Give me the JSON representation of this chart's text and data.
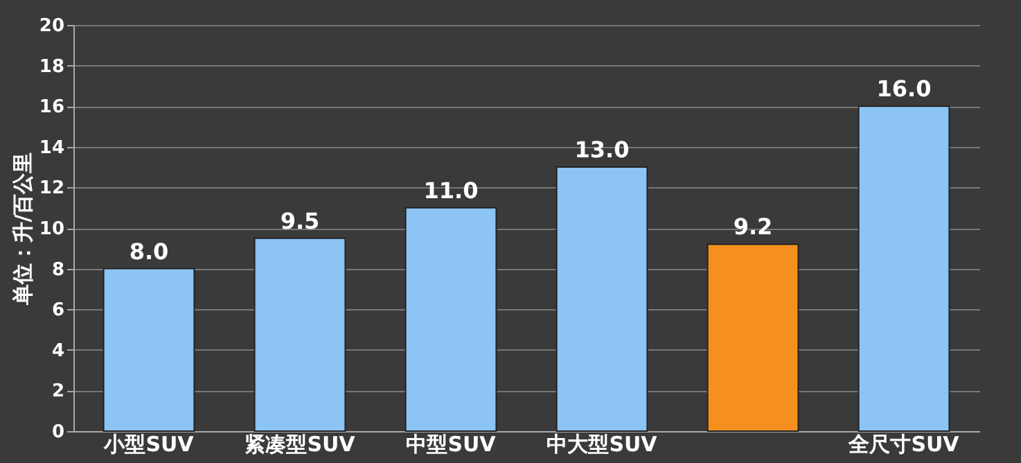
{
  "chart_data": {
    "type": "bar",
    "ylabel": "单位：升/百公里",
    "categories": [
      "小型SUV",
      "紧凑型SUV",
      "中型SUV",
      "中大型SUV",
      null,
      "全尺寸SUV"
    ],
    "values": [
      8.0,
      9.5,
      11.0,
      13.0,
      9.2,
      16.0
    ],
    "colors": [
      "#8cc4f4",
      "#8cc4f4",
      "#8cc4f4",
      "#8cc4f4",
      "#f5901e",
      "#8cc4f4"
    ],
    "value_labels": [
      "8.0",
      "9.5",
      "11.0",
      "13.0",
      "9.2",
      "16.0"
    ],
    "ylim": [
      0,
      20
    ],
    "yticks": [
      0,
      2,
      4,
      6,
      8,
      10,
      12,
      14,
      16,
      18,
      20
    ],
    "grid": "y"
  }
}
